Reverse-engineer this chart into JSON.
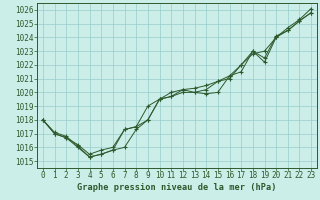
{
  "title": "Graphe pression niveau de la mer (hPa)",
  "bg_color": "#cceee8",
  "grid_color": "#99cccc",
  "line_color": "#2d5a2d",
  "xlim": [
    -0.5,
    23.5
  ],
  "ylim": [
    1014.5,
    1026.5
  ],
  "xticks": [
    0,
    1,
    2,
    3,
    4,
    5,
    6,
    7,
    8,
    9,
    10,
    11,
    12,
    13,
    14,
    15,
    16,
    17,
    18,
    19,
    20,
    21,
    22,
    23
  ],
  "yticks": [
    1015,
    1016,
    1017,
    1018,
    1019,
    1020,
    1021,
    1022,
    1023,
    1024,
    1025,
    1026
  ],
  "series1": {
    "x": [
      0,
      1,
      2,
      3,
      4,
      5,
      6,
      7,
      8,
      9,
      10,
      11,
      12,
      13,
      14,
      15,
      16,
      17,
      18,
      19,
      20,
      21,
      22,
      23
    ],
    "y": [
      1018.0,
      1017.0,
      1016.7,
      1016.0,
      1015.3,
      1015.5,
      1015.8,
      1016.0,
      1017.3,
      1018.0,
      1019.5,
      1019.7,
      1020.0,
      1020.0,
      1019.9,
      1020.0,
      1021.2,
      1021.5,
      1023.0,
      1022.2,
      1024.0,
      1024.5,
      1025.2,
      1025.8
    ]
  },
  "series2": {
    "x": [
      0,
      1,
      2,
      3,
      4,
      5,
      6,
      7,
      8,
      9,
      10,
      11,
      12,
      13,
      14,
      15,
      16,
      17,
      18,
      19,
      20,
      21,
      22,
      23
    ],
    "y": [
      1018.0,
      1017.0,
      1016.7,
      1016.2,
      1015.5,
      1015.8,
      1016.0,
      1017.3,
      1017.5,
      1018.0,
      1019.5,
      1019.7,
      1020.2,
      1020.0,
      1020.2,
      1020.8,
      1021.2,
      1022.0,
      1022.8,
      1023.0,
      1024.0,
      1024.7,
      1025.3,
      1026.1
    ]
  },
  "series3": {
    "x": [
      0,
      1,
      2,
      3,
      4,
      5,
      6,
      7,
      8,
      9,
      10,
      11,
      12,
      13,
      14,
      15,
      16,
      17,
      18,
      19,
      20,
      21,
      22,
      23
    ],
    "y": [
      1018.0,
      1017.1,
      1016.8,
      1016.1,
      1015.3,
      1015.5,
      1015.8,
      1017.3,
      1017.5,
      1019.0,
      1019.5,
      1020.0,
      1020.2,
      1020.3,
      1020.5,
      1020.8,
      1021.0,
      1022.0,
      1023.0,
      1022.5,
      1024.1,
      1024.5,
      1025.2,
      1025.8
    ]
  }
}
